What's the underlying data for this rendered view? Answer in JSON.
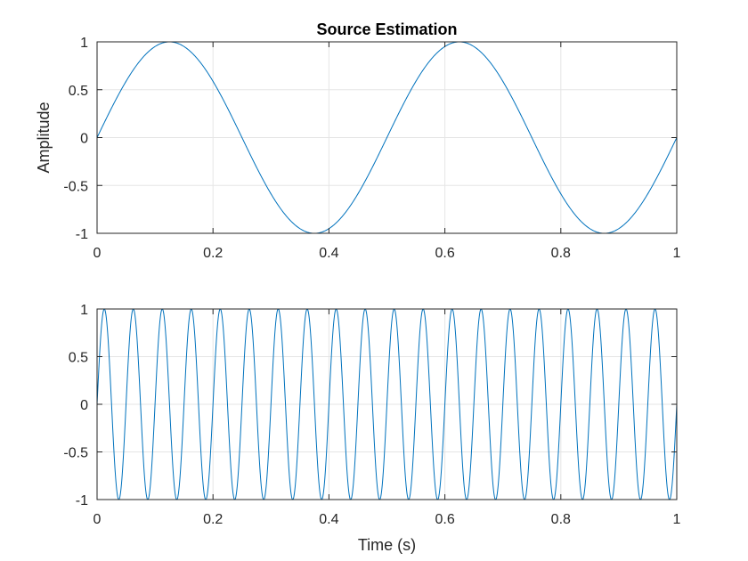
{
  "figure": {
    "background": "#ffffff",
    "line_color": "#0072bd",
    "grid_color": "#e5e5e5",
    "axis_color": "#262626"
  },
  "chart_data": [
    {
      "type": "line",
      "title": "Source Estimation",
      "xlabel": "",
      "ylabel": "Amplitude",
      "xlim": [
        0,
        1
      ],
      "ylim": [
        -1,
        1
      ],
      "x_ticks": [
        "0",
        "0.2",
        "0.4",
        "0.6",
        "0.8",
        "1"
      ],
      "y_ticks": [
        "1",
        "0.5",
        "0",
        "-0.5",
        "-1"
      ],
      "grid": true,
      "legend": "none",
      "series": [
        {
          "function": "sin",
          "frequency_hz": 2,
          "amplitude": 1,
          "x_range": [
            0,
            1
          ]
        }
      ]
    },
    {
      "type": "line",
      "title": "",
      "xlabel": "Time (s)",
      "ylabel": "",
      "xlim": [
        0,
        1
      ],
      "ylim": [
        -1,
        1
      ],
      "x_ticks": [
        "0",
        "0.2",
        "0.4",
        "0.6",
        "0.8",
        "1"
      ],
      "y_ticks": [
        "1",
        "0.5",
        "0",
        "-0.5",
        "-1"
      ],
      "grid": true,
      "legend": "none",
      "series": [
        {
          "function": "sin",
          "frequency_hz": 20,
          "amplitude": 1,
          "x_range": [
            0,
            1
          ]
        }
      ]
    }
  ]
}
